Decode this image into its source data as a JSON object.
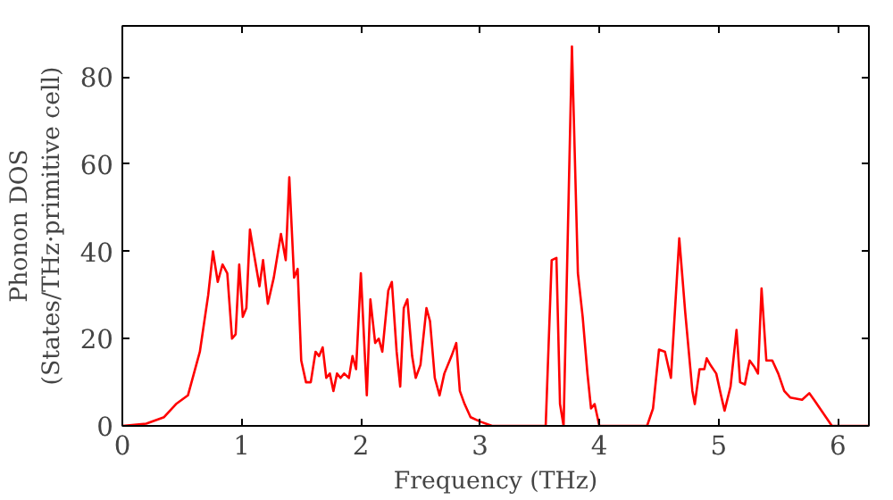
{
  "chart_data": {
    "type": "line",
    "xlabel": "Frequency (THz)",
    "ylabel": "Phonon DOS\n(States/THz·primitive cell)",
    "xlim": [
      0,
      6.26
    ],
    "ylim": [
      0,
      91.7
    ],
    "xticks": [
      0,
      1,
      2,
      3,
      4,
      5,
      6
    ],
    "yticks": [
      0,
      20,
      40,
      60,
      80
    ],
    "grid": false,
    "marker": "none",
    "line_style": "solid",
    "series": [
      {
        "color": "#ff0000",
        "x": [
          0,
          0.2,
          0.35,
          0.45,
          0.55,
          0.65,
          0.72,
          0.76,
          0.8,
          0.84,
          0.88,
          0.92,
          0.95,
          0.98,
          1.01,
          1.04,
          1.07,
          1.1,
          1.15,
          1.18,
          1.22,
          1.27,
          1.33,
          1.37,
          1.4,
          1.44,
          1.47,
          1.5,
          1.54,
          1.58,
          1.62,
          1.65,
          1.68,
          1.71,
          1.74,
          1.77,
          1.8,
          1.83,
          1.86,
          1.9,
          1.93,
          1.96,
          2.0,
          2.05,
          2.08,
          2.12,
          2.15,
          2.18,
          2.23,
          2.26,
          2.3,
          2.33,
          2.36,
          2.39,
          2.43,
          2.46,
          2.5,
          2.55,
          2.58,
          2.62,
          2.66,
          2.7,
          2.76,
          2.8,
          2.83,
          2.87,
          2.92,
          3.0,
          3.1,
          3.55,
          3.6,
          3.64,
          3.67,
          3.7,
          3.77,
          3.82,
          3.86,
          3.9,
          3.93,
          3.96,
          4.0,
          4.4,
          4.45,
          4.5,
          4.55,
          4.6,
          4.67,
          4.72,
          4.78,
          4.8,
          4.84,
          4.88,
          4.9,
          4.93,
          4.98,
          5.02,
          5.05,
          5.1,
          5.15,
          5.18,
          5.22,
          5.26,
          5.3,
          5.33,
          5.36,
          5.4,
          5.45,
          5.5,
          5.55,
          5.6,
          5.7,
          5.76,
          5.8,
          5.85,
          5.9,
          5.95,
          6.26
        ],
        "values": [
          0,
          0.5,
          2,
          5,
          7,
          17,
          30,
          40,
          33,
          37,
          35,
          20,
          21,
          37,
          25,
          27,
          45,
          40,
          32,
          38,
          28,
          34,
          44,
          38,
          57,
          34,
          36,
          15,
          10,
          10,
          17,
          16,
          18,
          11,
          12,
          8,
          12,
          11,
          12,
          11,
          16,
          13,
          35,
          7,
          29,
          19,
          20,
          17,
          31,
          33,
          17,
          9,
          27,
          29,
          16,
          11,
          14,
          27,
          24,
          11,
          7,
          12,
          16,
          19,
          8,
          5,
          2,
          1,
          0,
          0,
          38,
          38.5,
          5,
          0,
          87,
          35,
          25,
          12,
          4,
          5,
          0,
          0,
          4,
          17.5,
          17,
          11,
          43,
          26,
          8,
          5,
          13,
          13,
          15.5,
          14,
          12,
          7,
          3.5,
          9,
          22,
          10,
          9.5,
          15,
          13.5,
          12,
          31.5,
          15,
          15,
          12,
          8,
          6.5,
          6,
          7.5,
          6,
          4,
          2,
          0,
          0
        ]
      }
    ]
  }
}
